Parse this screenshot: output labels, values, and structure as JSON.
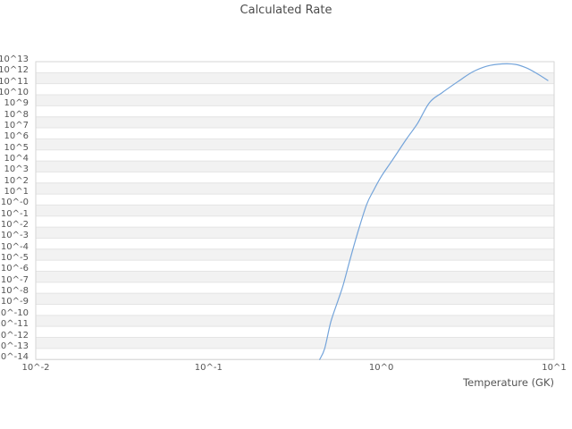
{
  "title": "Calculated Rate",
  "colors": {
    "line": "#74a4da",
    "band": "#f2f2f2",
    "grid": "#e4e4e4",
    "border": "#d6d6d6",
    "text": "#545454"
  },
  "chart_data": {
    "type": "line",
    "title": "Calculated Rate",
    "xlabel": "Temperature (GK)",
    "ylabel": "",
    "x_scale": "log",
    "y_scale": "log",
    "xlim_exp": [
      -2,
      1
    ],
    "ylim_exp": [
      -14,
      13
    ],
    "grid": "horizontal-bands",
    "legend": "none",
    "x_tick_labels": [
      "10^-2",
      "10^-1",
      "10^0",
      "10^1"
    ],
    "y_tick_labels": [
      "10^13",
      "10^12",
      "10^11",
      "10^10",
      "10^9",
      "10^8",
      "10^7",
      "10^6",
      "10^5",
      "10^4",
      "10^3",
      "10^2",
      "10^1",
      "10^-0",
      "10^-1",
      "10^-2",
      "10^-3",
      "10^-4",
      "10^-5",
      "10^-6",
      "10^-7",
      "10^-8",
      "10^-9",
      "10^-10",
      "10^-11",
      "10^-12",
      "10^-13",
      "10^-14"
    ],
    "series": [
      {
        "name": "Calculated Rate",
        "points_T_logRate": [
          [
            0.44,
            -14.0
          ],
          [
            0.47,
            -13.0
          ],
          [
            0.51,
            -10.6
          ],
          [
            0.56,
            -8.7
          ],
          [
            0.6,
            -7.3
          ],
          [
            0.66,
            -4.9
          ],
          [
            0.73,
            -2.5
          ],
          [
            0.82,
            0.0
          ],
          [
            0.9,
            1.3
          ],
          [
            1.0,
            2.6
          ],
          [
            1.15,
            4.0
          ],
          [
            1.4,
            6.0
          ],
          [
            1.62,
            7.4
          ],
          [
            1.9,
            9.3
          ],
          [
            2.25,
            10.2
          ],
          [
            2.9,
            11.4
          ],
          [
            3.4,
            12.1
          ],
          [
            4.1,
            12.6
          ],
          [
            5.0,
            12.8
          ],
          [
            6.0,
            12.75
          ],
          [
            7.0,
            12.4
          ],
          [
            8.0,
            11.9
          ],
          [
            9.2,
            11.3
          ]
        ]
      }
    ]
  }
}
